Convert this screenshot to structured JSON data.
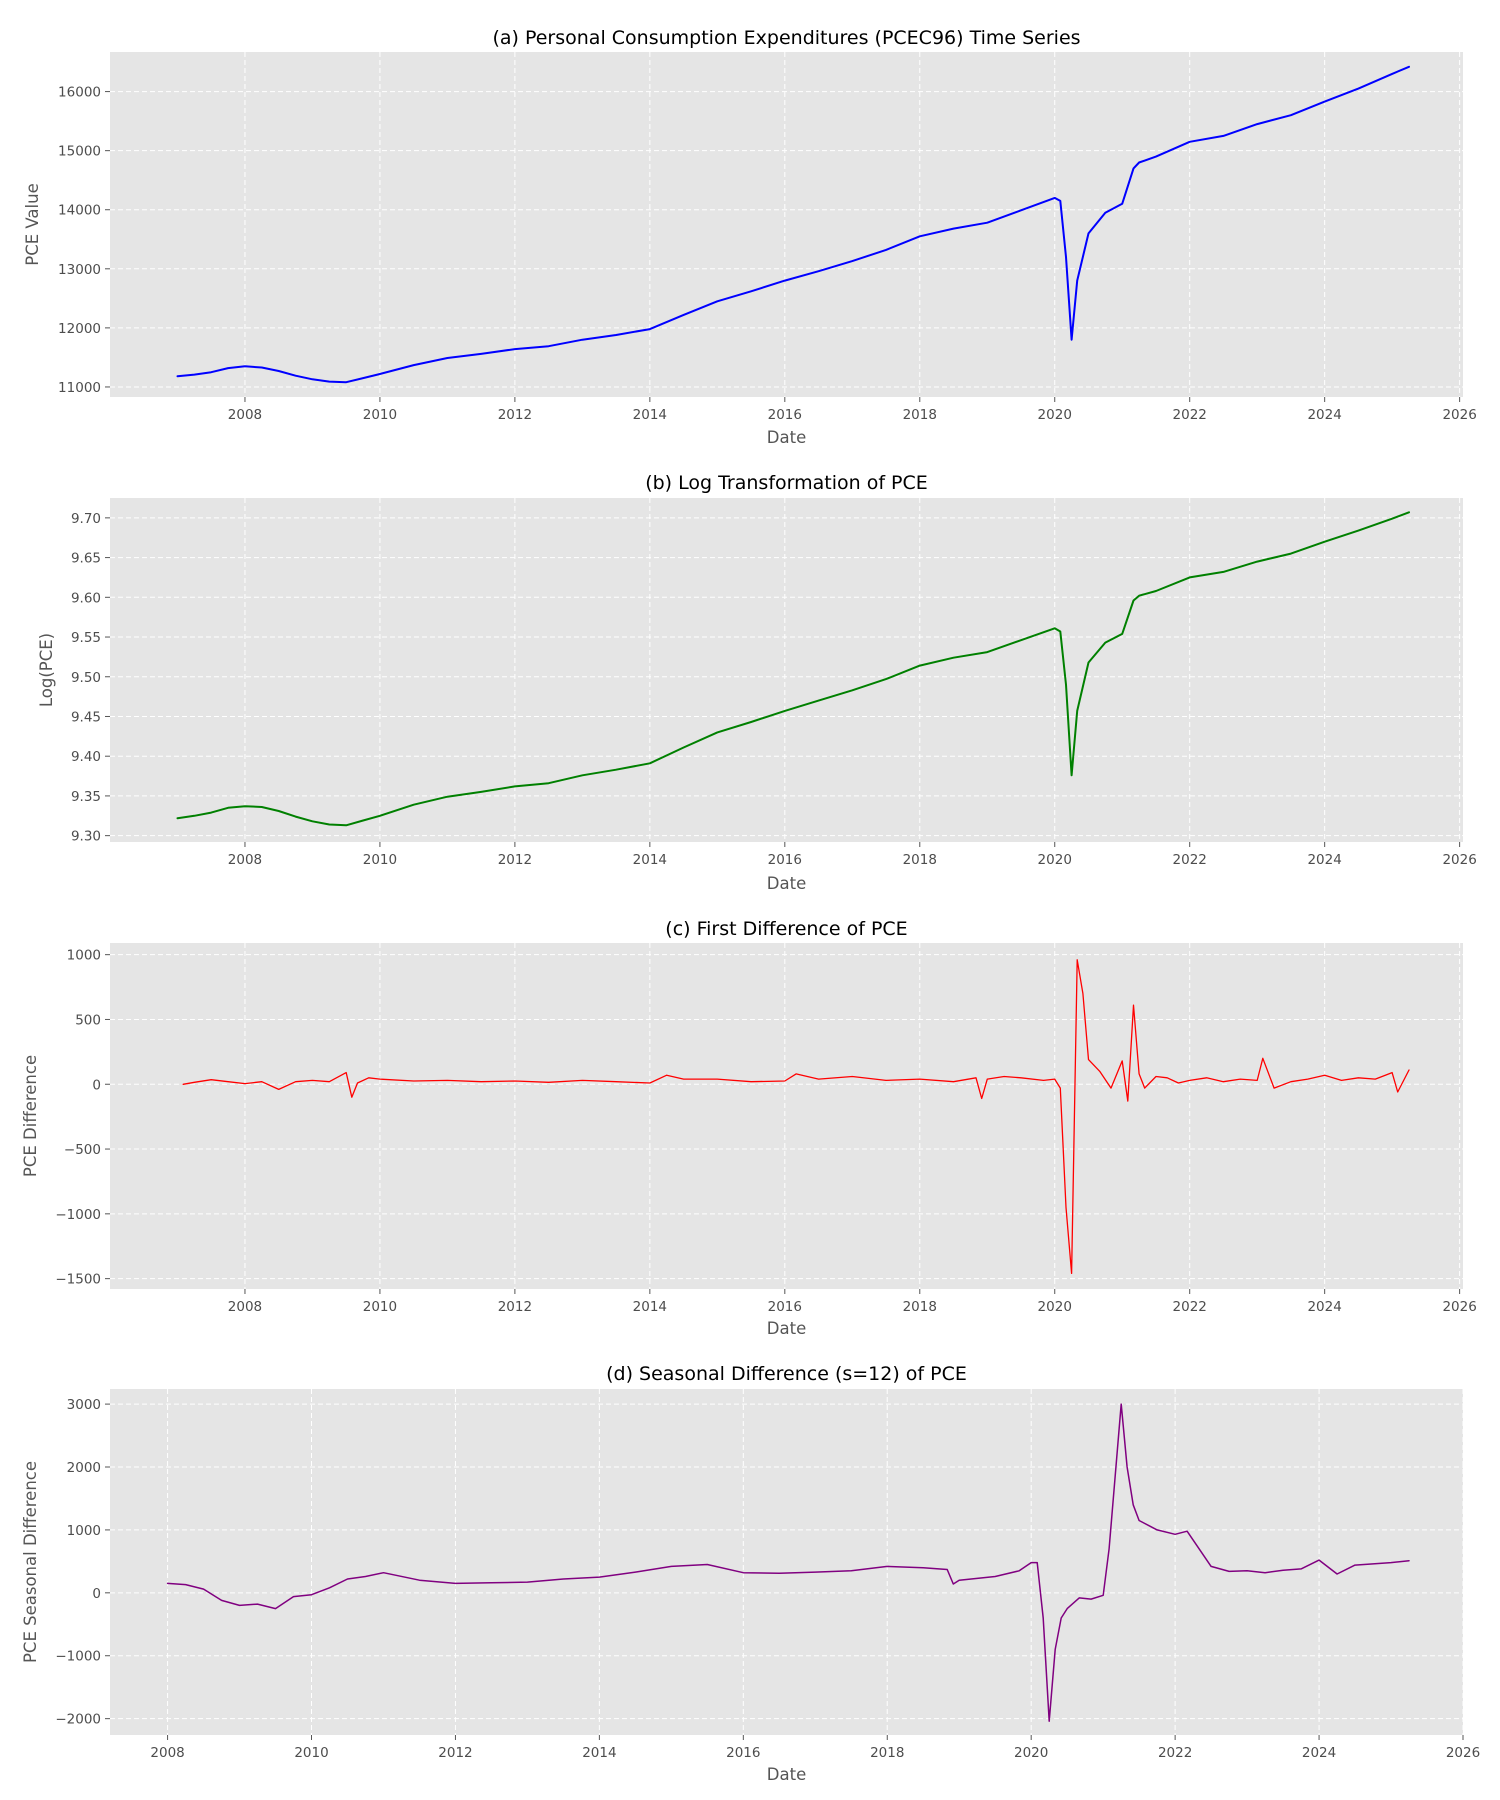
{
  "chart_data": [
    {
      "type": "line",
      "title": "(a) Personal Consumption Expenditures (PCEC96) Time Series",
      "xlabel": "Date",
      "ylabel": "PCE Value",
      "xlim": [
        2006.0,
        2026.05
      ],
      "ylim": [
        10830,
        16670
      ],
      "x_ticks": [
        2008,
        2010,
        2012,
        2014,
        2016,
        2018,
        2020,
        2022,
        2024,
        2026
      ],
      "y_ticks": [
        11000,
        12000,
        13000,
        14000,
        15000,
        16000
      ],
      "grid": true,
      "series": [
        {
          "color": "#0000ff",
          "line_width": 2,
          "x": [
            2007.0,
            2007.25,
            2007.5,
            2007.75,
            2008.0,
            2008.25,
            2008.5,
            2008.75,
            2009.0,
            2009.25,
            2009.5,
            2009.75,
            2010.0,
            2010.5,
            2011.0,
            2011.5,
            2012.0,
            2012.5,
            2013.0,
            2013.5,
            2014.0,
            2014.5,
            2015.0,
            2015.5,
            2016.0,
            2016.5,
            2017.0,
            2017.5,
            2018.0,
            2018.5,
            2019.0,
            2019.5,
            2020.0,
            2020.083,
            2020.167,
            2020.25,
            2020.333,
            2020.5,
            2020.75,
            2021.0,
            2021.167,
            2021.25,
            2021.5,
            2022.0,
            2022.5,
            2023.0,
            2023.5,
            2024.0,
            2024.5,
            2025.0,
            2025.25
          ],
          "values": [
            11180,
            11210,
            11250,
            11320,
            11350,
            11330,
            11270,
            11190,
            11130,
            11090,
            11080,
            11150,
            11220,
            11370,
            11490,
            11560,
            11640,
            11690,
            11800,
            11880,
            11980,
            12220,
            12450,
            12620,
            12800,
            12960,
            13130,
            13320,
            13550,
            13680,
            13780,
            13990,
            14200,
            14150,
            13200,
            11800,
            12800,
            13600,
            13950,
            14100,
            14700,
            14800,
            14900,
            15150,
            15250,
            15450,
            15600,
            15830,
            16050,
            16300,
            16420
          ]
        }
      ]
    },
    {
      "type": "line",
      "title": "(b) Log Transformation of PCE",
      "xlabel": "Date",
      "ylabel": "Log(PCE)",
      "xlim": [
        2006.0,
        2026.05
      ],
      "ylim": [
        9.292,
        9.725
      ],
      "x_ticks": [
        2008,
        2010,
        2012,
        2014,
        2016,
        2018,
        2020,
        2022,
        2024,
        2026
      ],
      "y_ticks": [
        9.3,
        9.35,
        9.4,
        9.45,
        9.5,
        9.55,
        9.6,
        9.65,
        9.7
      ],
      "y_tick_labels": [
        "9.30",
        "9.35",
        "9.40",
        "9.45",
        "9.50",
        "9.55",
        "9.60",
        "9.65",
        "9.70"
      ],
      "grid": true,
      "series": [
        {
          "color": "#008000",
          "line_width": 2,
          "x": [
            2007.0,
            2007.25,
            2007.5,
            2007.75,
            2008.0,
            2008.25,
            2008.5,
            2008.75,
            2009.0,
            2009.25,
            2009.5,
            2009.75,
            2010.0,
            2010.5,
            2011.0,
            2011.5,
            2012.0,
            2012.5,
            2013.0,
            2013.5,
            2014.0,
            2014.5,
            2015.0,
            2015.5,
            2016.0,
            2016.5,
            2017.0,
            2017.5,
            2018.0,
            2018.5,
            2019.0,
            2019.5,
            2020.0,
            2020.083,
            2020.167,
            2020.25,
            2020.333,
            2020.5,
            2020.75,
            2021.0,
            2021.167,
            2021.25,
            2021.5,
            2022.0,
            2022.5,
            2023.0,
            2023.5,
            2024.0,
            2024.5,
            2025.0,
            2025.25
          ],
          "values": [
            9.322,
            9.325,
            9.329,
            9.335,
            9.337,
            9.336,
            9.331,
            9.324,
            9.318,
            9.314,
            9.313,
            9.319,
            9.325,
            9.339,
            9.349,
            9.355,
            9.362,
            9.366,
            9.376,
            9.383,
            9.391,
            9.411,
            9.43,
            9.443,
            9.457,
            9.47,
            9.483,
            9.497,
            9.514,
            9.524,
            9.531,
            9.546,
            9.561,
            9.557,
            9.49,
            9.376,
            9.457,
            9.518,
            9.543,
            9.554,
            9.596,
            9.602,
            9.608,
            9.625,
            9.632,
            9.645,
            9.655,
            9.67,
            9.684,
            9.699,
            9.707
          ]
        }
      ]
    },
    {
      "type": "line",
      "title": "(c) First Difference of PCE",
      "xlabel": "Date",
      "ylabel": "PCE Difference",
      "xlim": [
        2006.0,
        2026.05
      ],
      "ylim": [
        -1580,
        1090
      ],
      "x_ticks": [
        2008,
        2010,
        2012,
        2014,
        2016,
        2018,
        2020,
        2022,
        2024,
        2026
      ],
      "y_ticks": [
        -1500,
        -1000,
        -500,
        0,
        500,
        1000
      ],
      "y_tick_labels": [
        "−1500",
        "−1000",
        "−500",
        "0",
        "500",
        "1000"
      ],
      "grid": true,
      "series": [
        {
          "color": "#ff0000",
          "line_width": 1.3,
          "x": [
            2007.083,
            2007.25,
            2007.5,
            2007.75,
            2008.0,
            2008.25,
            2008.5,
            2008.75,
            2009.0,
            2009.25,
            2009.5,
            2009.583,
            2009.667,
            2009.833,
            2010.0,
            2010.5,
            2011.0,
            2011.5,
            2012.0,
            2012.5,
            2013.0,
            2013.5,
            2014.0,
            2014.25,
            2014.5,
            2015.0,
            2015.5,
            2016.0,
            2016.167,
            2016.5,
            2017.0,
            2017.5,
            2018.0,
            2018.5,
            2018.833,
            2018.917,
            2019.0,
            2019.25,
            2019.5,
            2019.833,
            2020.0,
            2020.083,
            2020.167,
            2020.25,
            2020.333,
            2020.417,
            2020.5,
            2020.667,
            2020.833,
            2021.0,
            2021.083,
            2021.167,
            2021.25,
            2021.333,
            2021.5,
            2021.667,
            2021.833,
            2022.0,
            2022.25,
            2022.5,
            2022.75,
            2023.0,
            2023.083,
            2023.25,
            2023.5,
            2023.75,
            2024.0,
            2024.25,
            2024.5,
            2024.75,
            2025.0,
            2025.083,
            2025.25
          ],
          "values": [
            0,
            15,
            35,
            20,
            5,
            20,
            -40,
            20,
            30,
            20,
            90,
            -100,
            10,
            50,
            40,
            25,
            30,
            20,
            25,
            15,
            30,
            20,
            10,
            70,
            40,
            40,
            20,
            25,
            80,
            40,
            60,
            30,
            40,
            20,
            50,
            -110,
            40,
            60,
            50,
            30,
            40,
            -30,
            -950,
            -1460,
            960,
            700,
            190,
            100,
            -30,
            180,
            -130,
            610,
            80,
            -30,
            60,
            50,
            10,
            30,
            50,
            20,
            40,
            30,
            200,
            -30,
            20,
            40,
            70,
            30,
            50,
            40,
            90,
            -60,
            110
          ]
        }
      ]
    },
    {
      "type": "line",
      "title": "(d) Seasonal Difference (s=12) of PCE",
      "xlabel": "Date",
      "ylabel": "PCE Seasonal Difference",
      "xlim": [
        2007.2,
        2026.0
      ],
      "ylim": [
        -2260,
        3240
      ],
      "x_ticks": [
        2008,
        2010,
        2012,
        2014,
        2016,
        2018,
        2020,
        2022,
        2024,
        2026
      ],
      "y_ticks": [
        -2000,
        -1000,
        0,
        1000,
        2000,
        3000
      ],
      "y_tick_labels": [
        "−2000",
        "−1000",
        "0",
        "1000",
        "2000",
        "3000"
      ],
      "grid": true,
      "series": [
        {
          "color": "#800080",
          "line_width": 1.5,
          "x": [
            2008.0,
            2008.25,
            2008.5,
            2008.75,
            2009.0,
            2009.25,
            2009.5,
            2009.75,
            2010.0,
            2010.25,
            2010.5,
            2010.75,
            2011.0,
            2011.5,
            2012.0,
            2012.5,
            2013.0,
            2013.5,
            2014.0,
            2014.5,
            2015.0,
            2015.5,
            2016.0,
            2016.5,
            2017.0,
            2017.5,
            2018.0,
            2018.5,
            2018.833,
            2018.917,
            2019.0,
            2019.5,
            2019.833,
            2020.0,
            2020.083,
            2020.167,
            2020.25,
            2020.333,
            2020.417,
            2020.5,
            2020.667,
            2020.833,
            2021.0,
            2021.083,
            2021.25,
            2021.333,
            2021.417,
            2021.5,
            2021.75,
            2022.0,
            2022.167,
            2022.5,
            2022.75,
            2023.0,
            2023.25,
            2023.5,
            2023.75,
            2024.0,
            2024.25,
            2024.5,
            2024.75,
            2025.0,
            2025.25
          ],
          "values": [
            150,
            130,
            60,
            -120,
            -200,
            -180,
            -250,
            -60,
            -30,
            80,
            220,
            260,
            320,
            200,
            150,
            160,
            170,
            220,
            250,
            330,
            420,
            450,
            320,
            310,
            330,
            350,
            420,
            400,
            370,
            140,
            200,
            260,
            350,
            480,
            480,
            -400,
            -2040,
            -900,
            -400,
            -250,
            -80,
            -100,
            -40,
            700,
            3000,
            2000,
            1400,
            1150,
            1000,
            930,
            980,
            420,
            340,
            350,
            320,
            360,
            380,
            520,
            300,
            440,
            460,
            480,
            510
          ]
        }
      ]
    }
  ]
}
